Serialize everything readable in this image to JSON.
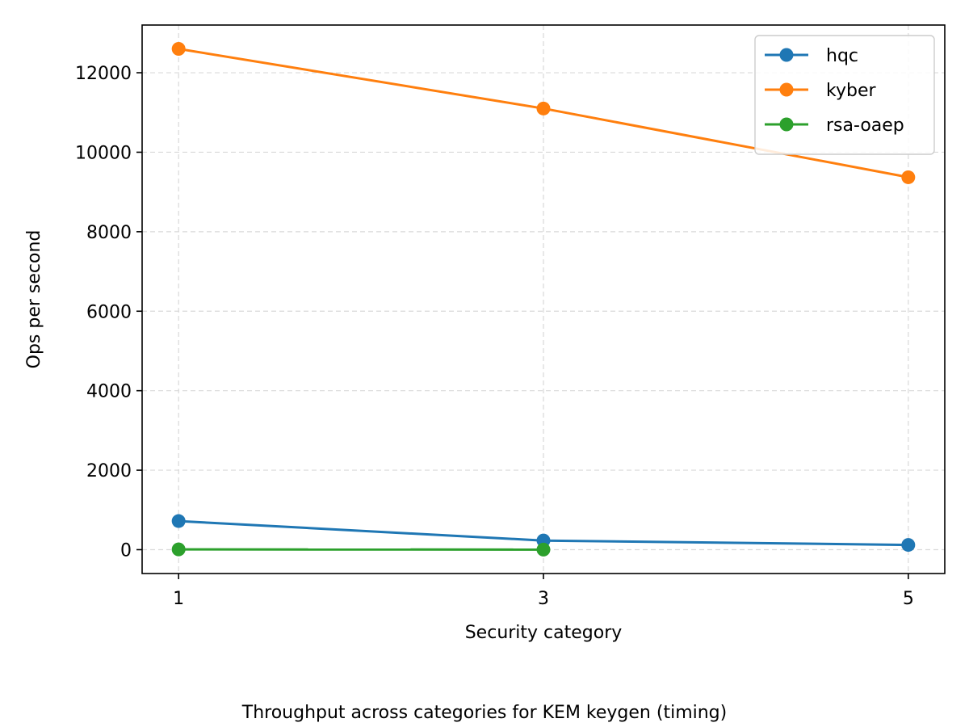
{
  "caption": "Throughput across categories for KEM keygen (timing)",
  "chart_data": {
    "type": "line",
    "title": "",
    "xlabel": "Security category",
    "ylabel": "Ops per second",
    "x": [
      1,
      3,
      5
    ],
    "xticks": [
      "1",
      "3",
      "5"
    ],
    "xlim": [
      0.8,
      5.2
    ],
    "ylim": [
      -600,
      13200
    ],
    "yticks": [
      0,
      2000,
      4000,
      6000,
      8000,
      10000,
      12000
    ],
    "grid": true,
    "legend_position": "top-right",
    "series": [
      {
        "name": "hqc",
        "color": "#1f77b4",
        "x": [
          1,
          3,
          5
        ],
        "values": [
          720,
          230,
          120
        ]
      },
      {
        "name": "kyber",
        "color": "#ff7f0e",
        "x": [
          1,
          3,
          5
        ],
        "values": [
          12600,
          11100,
          9370
        ]
      },
      {
        "name": "rsa-oaep",
        "color": "#2ca02c",
        "x": [
          1,
          3
        ],
        "values": [
          8,
          2
        ]
      }
    ]
  }
}
